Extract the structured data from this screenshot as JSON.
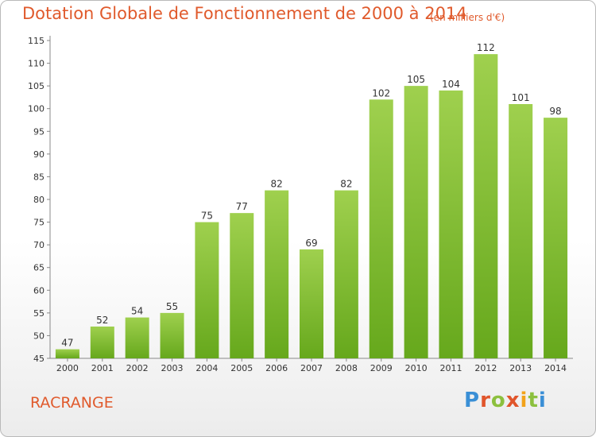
{
  "title": "Dotation Globale de Fonctionnement de 2000 à 2014",
  "subtitle": "(en milliers d'€)",
  "commune": "RACRANGE",
  "logo": {
    "letters": [
      "P",
      "r",
      "o",
      "x",
      "i",
      "t",
      "i"
    ],
    "colors": [
      "#3a8fd6",
      "#e0552b",
      "#8cc03e",
      "#e0552b",
      "#f2a31b",
      "#8cc03e",
      "#3a8fd6"
    ]
  },
  "chart_data": {
    "type": "bar",
    "categories": [
      "2000",
      "2001",
      "2002",
      "2003",
      "2004",
      "2005",
      "2006",
      "2007",
      "2008",
      "2009",
      "2010",
      "2011",
      "2012",
      "2013",
      "2014"
    ],
    "values": [
      47,
      52,
      54,
      55,
      75,
      77,
      82,
      69,
      82,
      102,
      105,
      104,
      112,
      101,
      98
    ],
    "ylim": [
      45,
      115
    ],
    "yticks": [
      45,
      50,
      55,
      60,
      65,
      70,
      75,
      80,
      85,
      90,
      95,
      100,
      105,
      110,
      115
    ],
    "grid": false,
    "bar_color": "#7dbb2e",
    "xlabel": "",
    "ylabel": ""
  }
}
